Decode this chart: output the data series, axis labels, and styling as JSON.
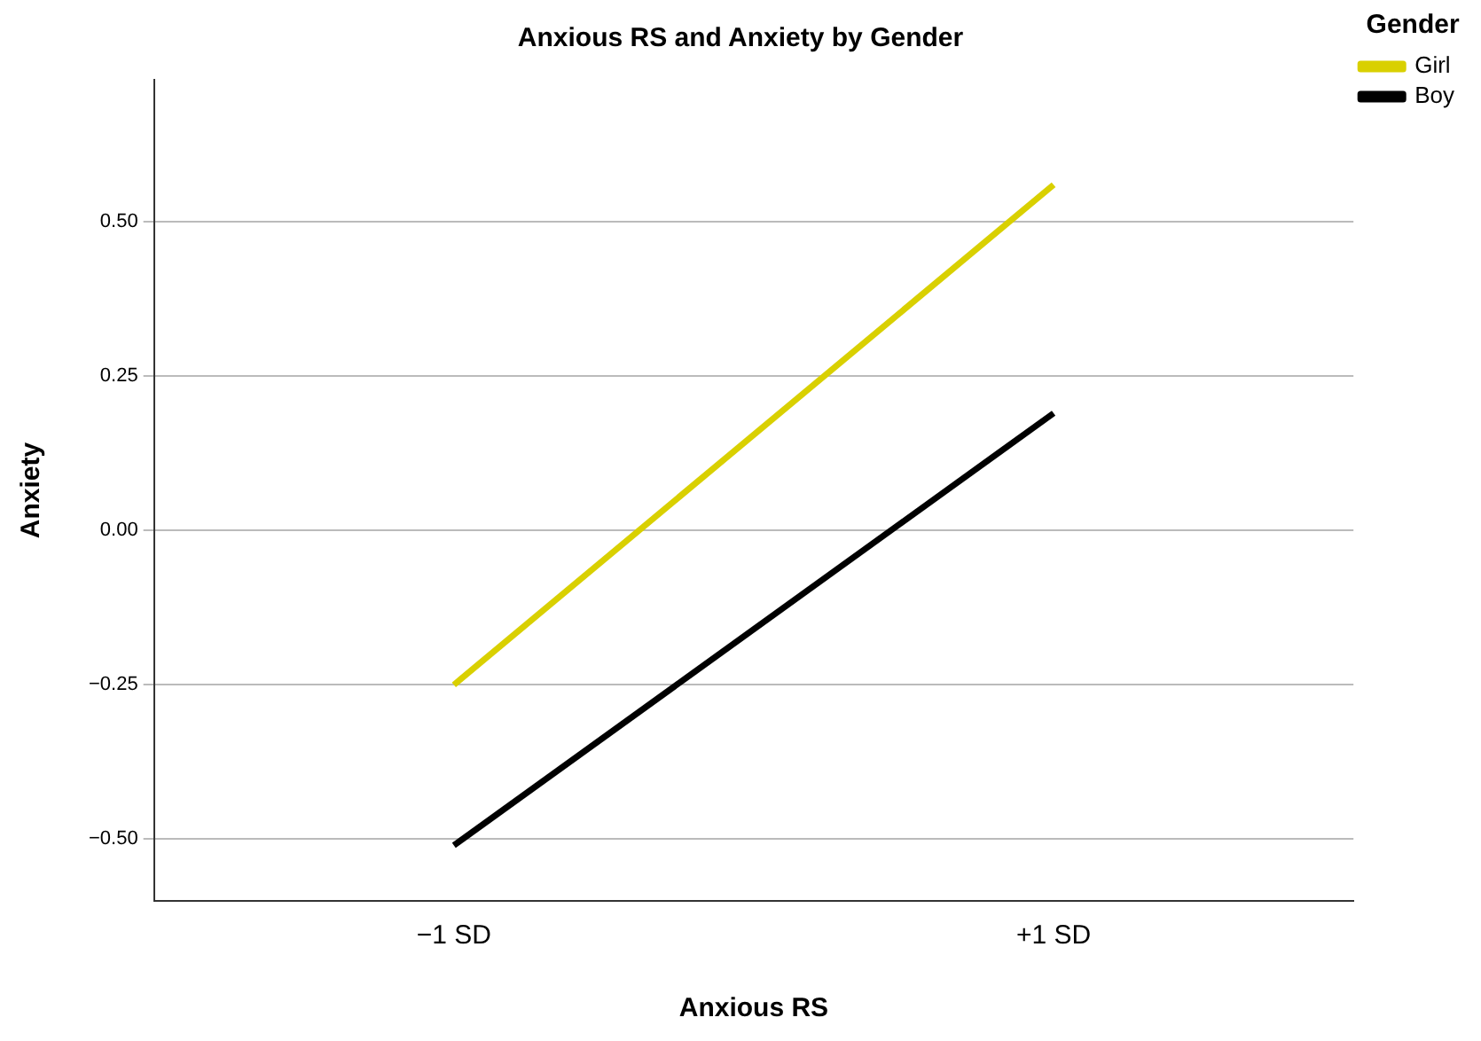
{
  "chart_data": {
    "type": "line",
    "title": "Anxious RS and Anxiety by Gender",
    "xlabel": "Anxious RS",
    "ylabel": "Anxiety",
    "legend_title": "Gender",
    "categories": [
      "−1 SD",
      "+1 SD"
    ],
    "series": [
      {
        "name": "Girl",
        "color": "#d9d000",
        "values": [
          -0.25,
          0.56
        ]
      },
      {
        "name": "Boy",
        "color": "#000000",
        "values": [
          -0.51,
          0.19
        ]
      }
    ],
    "ylim": [
      -0.6,
      0.73
    ],
    "yticks": [
      {
        "value": -0.5,
        "label": "−0.50"
      },
      {
        "value": -0.25,
        "label": "−0.25"
      },
      {
        "value": 0,
        "label": "0.00"
      },
      {
        "value": 0.25,
        "label": "0.25"
      },
      {
        "value": 0.5,
        "label": "0.50"
      }
    ],
    "grid": "y",
    "legend": "top right",
    "marker": "none",
    "line_style": "solid"
  }
}
